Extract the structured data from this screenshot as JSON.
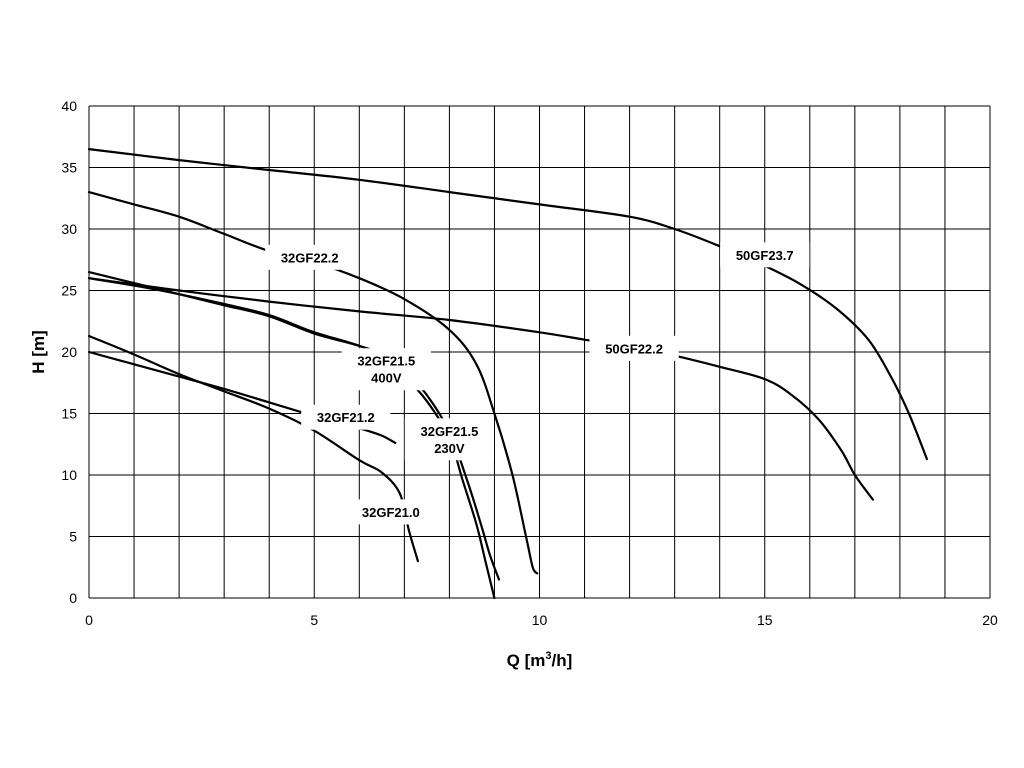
{
  "chart_data": {
    "type": "line",
    "xlabel": "Q [m³/h]",
    "ylabel": "H [m]",
    "xlim": [
      0,
      20
    ],
    "ylim": [
      0,
      40
    ],
    "xticks": [
      0,
      5,
      10,
      15,
      20
    ],
    "yticks": [
      0,
      5,
      10,
      15,
      20,
      25,
      30,
      35,
      40
    ],
    "x_grid_step": 1,
    "y_grid_step": 5,
    "grid": true,
    "legend": "none (curves labeled directly)",
    "series": [
      {
        "name": "50GF23.7",
        "x": [
          0,
          2,
          4,
          6,
          8,
          10,
          12,
          13,
          14,
          15,
          15.8,
          16.6,
          17.3,
          17.8,
          18.2,
          18.6
        ],
        "y": [
          36.5,
          35.6,
          34.8,
          34.0,
          33.0,
          32.0,
          31.0,
          30.0,
          28.6,
          27.0,
          25.5,
          23.5,
          21.0,
          18.0,
          15.0,
          11.3
        ]
      },
      {
        "name": "32GF22.2",
        "x": [
          0,
          1,
          2,
          3,
          4,
          5,
          6,
          7,
          8,
          8.6,
          9.0,
          9.4,
          9.7,
          9.85,
          9.95
        ],
        "y": [
          33.0,
          32.0,
          31.0,
          29.6,
          28.2,
          27.3,
          26.0,
          24.3,
          21.8,
          19.0,
          15.0,
          10.0,
          5.0,
          2.5,
          2.0
        ]
      },
      {
        "name": "50GF22.2",
        "x": [
          0,
          2,
          4,
          6,
          8,
          10,
          11,
          12,
          13,
          14,
          15,
          15.6,
          16.2,
          16.7,
          17.0,
          17.4
        ],
        "y": [
          26.0,
          25.0,
          24.1,
          23.3,
          22.6,
          21.6,
          21.0,
          20.4,
          19.7,
          18.8,
          17.8,
          16.5,
          14.5,
          12.0,
          10.0,
          8.0
        ]
      },
      {
        "name": "32GF21.5 400V",
        "x": [
          0,
          1,
          2,
          3,
          4,
          5,
          6,
          6.6,
          7,
          7.5,
          8,
          8.4,
          8.7,
          8.9,
          9.1
        ],
        "y": [
          26.5,
          25.6,
          24.7,
          23.8,
          22.9,
          21.5,
          20.5,
          19.7,
          18.5,
          16.5,
          13.5,
          9.5,
          6.0,
          3.5,
          1.5
        ]
      },
      {
        "name": "32GF21.5 230V",
        "x": [
          0,
          1,
          2,
          3,
          4,
          5,
          6,
          6.5,
          7,
          7.5,
          8,
          8.3,
          8.6,
          8.8,
          9.0
        ],
        "y": [
          26.0,
          25.4,
          24.7,
          23.9,
          23.0,
          21.6,
          20.5,
          19.5,
          18.0,
          16.0,
          13.0,
          9.5,
          6.0,
          3.0,
          0.0
        ]
      },
      {
        "name": "32GF21.2",
        "x": [
          0,
          1,
          2,
          3,
          4,
          5,
          6,
          6.5,
          6.8
        ],
        "y": [
          20.0,
          19.0,
          18.0,
          17.0,
          15.9,
          14.8,
          13.8,
          13.2,
          12.6
        ]
      },
      {
        "name": "32GF21.0",
        "x": [
          0,
          1,
          2,
          3,
          4,
          5,
          6,
          6.5,
          6.9,
          7.1,
          7.3
        ],
        "y": [
          21.3,
          19.8,
          18.2,
          16.8,
          15.4,
          13.6,
          11.2,
          10.2,
          8.5,
          5.5,
          3.0
        ]
      }
    ],
    "annotations": [
      {
        "series": "50GF23.7",
        "lines": [
          "50GF23.7"
        ],
        "at": [
          15.0,
          27.9
        ]
      },
      {
        "series": "32GF22.2",
        "lines": [
          "32GF22.2"
        ],
        "at": [
          4.9,
          27.7
        ]
      },
      {
        "series": "50GF22.2",
        "lines": [
          "50GF22.2"
        ],
        "at": [
          12.1,
          20.3
        ]
      },
      {
        "series": "32GF21.5 400V",
        "lines": [
          "32GF21.5",
          "400V"
        ],
        "at": [
          6.6,
          18.6
        ]
      },
      {
        "series": "32GF21.2",
        "lines": [
          "32GF21.2"
        ],
        "at": [
          5.7,
          14.7
        ]
      },
      {
        "series": "32GF21.5 230V",
        "lines": [
          "32GF21.5",
          "230V"
        ],
        "at": [
          8.0,
          12.9
        ]
      },
      {
        "series": "32GF21.0",
        "lines": [
          "32GF21.0"
        ],
        "at": [
          6.7,
          7.0
        ]
      }
    ]
  }
}
